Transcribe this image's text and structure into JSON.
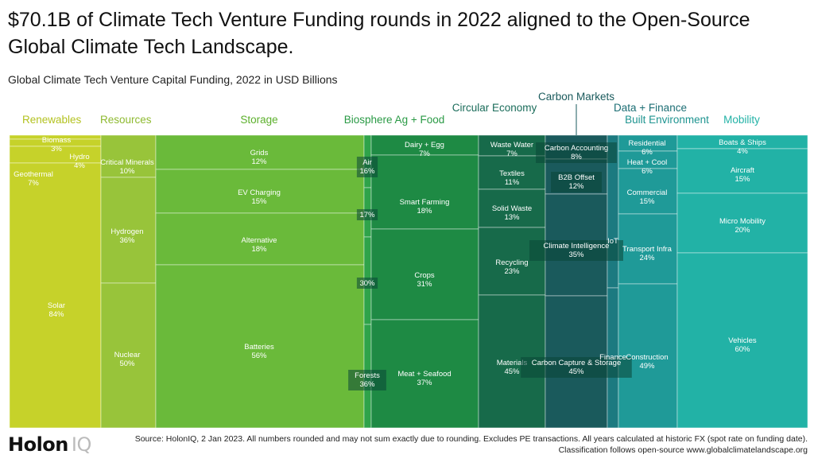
{
  "title": "$70.1B of Climate Tech Venture Funding rounds in 2022 aligned to the Open-Source Global Climate Tech Landscape.",
  "subtitle": "Global Climate Tech Venture Capital Funding, 2022 in USD Billions",
  "footer": {
    "logo_main": "Holon",
    "logo_iq": "IQ",
    "source": "Source: HolonIQ, 2 Jan 2023. All numbers rounded and may not sum exactly due to rounding. Excludes PE transactions. All years calculated at historic FX (spot rate on funding date). Classification follows open-source www.globalclimatelandscape.org"
  },
  "colors": {
    "renewables": "#c6d22a",
    "resources": "#98c43a",
    "storage": "#6aba3a",
    "biosphere": "#2fa34a",
    "ag_food": "#1e8a44",
    "circular": "#176a4a",
    "carbon": "#1a5a5c",
    "data_finance": "#1c7a80",
    "built": "#1f9a98",
    "mobility": "#22b2a6",
    "label_renewables": "#b3c220",
    "label_resources": "#8eba30",
    "label_storage": "#5cb02c",
    "label_biosphere": "#2a9a45",
    "label_circular": "#1a6c5a",
    "label_carbon": "#1a5a5c",
    "label_data": "#1c6e74",
    "label_built": "#1e9490",
    "label_mobility": "#22b2a6"
  },
  "chart_data": {
    "type": "treemap",
    "title": "$70.1B of Climate Tech Venture Funding rounds in 2022 aligned to the Open-Source Global Climate Tech Landscape.",
    "subtitle": "Global Climate Tech Venture Capital Funding, 2022 in USD Billions",
    "categories": [
      {
        "name": "Renewables",
        "color_key": "renewables",
        "segments": [
          {
            "name": "Biomass",
            "share": 3
          },
          {
            "name": "Hydro",
            "share": 4
          },
          {
            "name": "Geothermal",
            "share": 7
          },
          {
            "name": "Solar",
            "share": 84
          }
        ]
      },
      {
        "name": "Resources",
        "color_key": "resources",
        "segments": [
          {
            "name": "Critical Minerals",
            "share": 10
          },
          {
            "name": "Hydrogen",
            "share": 36
          },
          {
            "name": "Nuclear",
            "share": 50
          }
        ]
      },
      {
        "name": "Storage",
        "color_key": "storage",
        "segments": [
          {
            "name": "Grids",
            "share": 12
          },
          {
            "name": "EV Charging",
            "share": 15
          },
          {
            "name": "Alternative",
            "share": 18
          },
          {
            "name": "Batteries",
            "share": 56
          }
        ]
      },
      {
        "name": "Biosphere",
        "color_key": "biosphere",
        "segments": [
          {
            "name": "Air",
            "share": 16
          },
          {
            "name": "",
            "share": 17
          },
          {
            "name": "",
            "share": 30
          },
          {
            "name": "Forests",
            "share": 36
          }
        ]
      },
      {
        "name": "Ag + Food",
        "color_key": "ag_food",
        "segments": [
          {
            "name": "Dairy + Egg",
            "share": 7
          },
          {
            "name": "Smart Farming",
            "share": 18
          },
          {
            "name": "Crops",
            "share": 31
          },
          {
            "name": "Meat + Seafood",
            "share": 37
          }
        ]
      },
      {
        "name": "Circular Economy",
        "color_key": "circular",
        "segments": [
          {
            "name": "Waste Water",
            "share": 7
          },
          {
            "name": "Textiles",
            "share": 11
          },
          {
            "name": "Solid Waste",
            "share": 13
          },
          {
            "name": "Recycling",
            "share": 23
          },
          {
            "name": "Materials",
            "share": 45
          }
        ]
      },
      {
        "name": "Carbon Markets",
        "color_key": "carbon",
        "segments": [
          {
            "name": "Carbon Accounting",
            "share": 8
          },
          {
            "name": "B2B Offset",
            "share": 12
          },
          {
            "name": "Climate Intelligence",
            "share": 35
          },
          {
            "name": "Carbon Capture & Storage",
            "share": 45
          }
        ]
      },
      {
        "name": "Data + Finance",
        "color_key": "data_finance",
        "segments": [
          {
            "name": "IoT",
            "share": null
          },
          {
            "name": "Finance",
            "share": null
          }
        ]
      },
      {
        "name": "Built Environment",
        "color_key": "built",
        "segments": [
          {
            "name": "Residential",
            "share": 6
          },
          {
            "name": "Heat + Cool",
            "share": 6
          },
          {
            "name": "Commercial",
            "share": 15
          },
          {
            "name": "Transport Infra",
            "share": 24
          },
          {
            "name": "Construction",
            "share": 49
          }
        ]
      },
      {
        "name": "Mobility",
        "color_key": "mobility",
        "segments": [
          {
            "name": "Boats & Ships",
            "share": 4
          },
          {
            "name": "Aircraft",
            "share": 15
          },
          {
            "name": "Micro Mobility",
            "share": 20
          },
          {
            "name": "Vehicles",
            "share": 60
          }
        ]
      }
    ]
  }
}
